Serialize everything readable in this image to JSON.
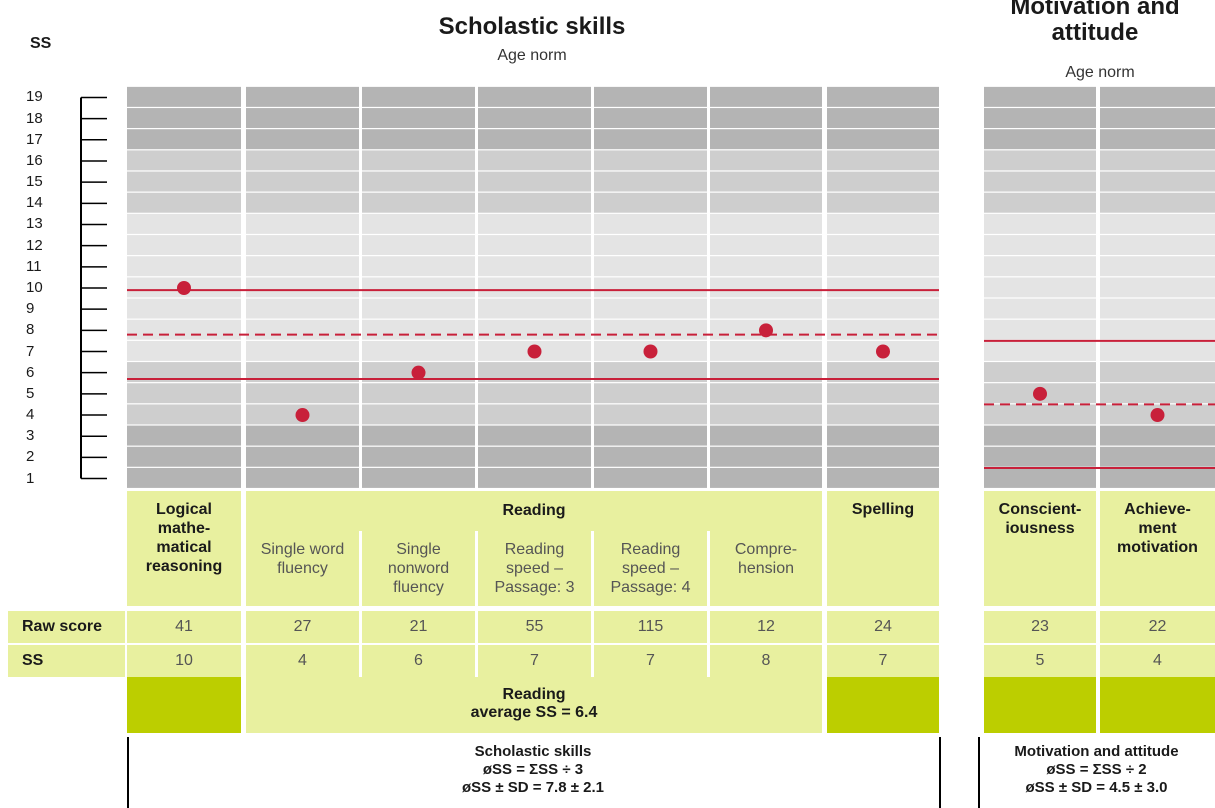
{
  "ss_axis_label": "SS",
  "titles": {
    "scholastic": "Scholastic skills",
    "scholastic_sub": "Age norm",
    "motivation": "Motivation and attitude",
    "motivation_sub": "Age norm"
  },
  "columns": [
    {
      "group": "scholastic",
      "header_bold": "Logical mathe-matical reasoning",
      "header_sub": "",
      "raw": "41",
      "ss": "10"
    },
    {
      "group": "reading",
      "header_bold": "",
      "header_sub": "Single word fluency",
      "raw": "27",
      "ss": "4"
    },
    {
      "group": "reading",
      "header_bold": "",
      "header_sub": "Single nonword fluency",
      "raw": "21",
      "ss": "6"
    },
    {
      "group": "reading",
      "header_bold": "",
      "header_sub": "Reading speed – Passage: 3",
      "raw": "55",
      "ss": "7"
    },
    {
      "group": "reading",
      "header_bold": "",
      "header_sub": "Reading speed – Passage: 4",
      "raw": "115",
      "ss": "7"
    },
    {
      "group": "reading",
      "header_bold": "",
      "header_sub": "Compre-hension",
      "raw": "12",
      "ss": "8"
    },
    {
      "group": "scholastic",
      "header_bold": "Spelling",
      "header_sub": "",
      "raw": "24",
      "ss": "7"
    },
    {
      "group": "motivation",
      "header_bold": "Conscient-iousness",
      "header_sub": "",
      "raw": "23",
      "ss": "5"
    },
    {
      "group": "motivation",
      "header_bold": "Achieve-ment motivation",
      "header_sub": "",
      "raw": "22",
      "ss": "4"
    }
  ],
  "reading_header": "Reading",
  "row_labels": {
    "raw": "Raw score",
    "ss": "SS"
  },
  "reading_average": {
    "line1": "Reading",
    "line2": "average SS = 6.4"
  },
  "footer": {
    "scholastic": [
      "Scholastic skills",
      "øSS = ΣSS ÷ 3",
      "øSS ± SD = 7.8 ± 2.1"
    ],
    "motivation": [
      "Motivation and attitude",
      "øSS = ΣSS ÷ 2",
      "øSS ± SD = 4.5 ± 3.0"
    ]
  },
  "chart_data": {
    "type": "scatter",
    "ylim": [
      1,
      19
    ],
    "y_ticks": [
      1,
      2,
      3,
      4,
      5,
      6,
      7,
      8,
      9,
      10,
      11,
      12,
      13,
      14,
      15,
      16,
      17,
      18,
      19
    ],
    "categories": [
      "Logical mathematical reasoning",
      "Single word fluency",
      "Single nonword fluency",
      "Reading speed – Passage: 3",
      "Reading speed – Passage: 4",
      "Comprehension",
      "Spelling",
      "Conscientiousness",
      "Achievement motivation"
    ],
    "values": [
      10,
      4,
      6,
      7,
      7,
      8,
      7,
      5,
      4
    ],
    "scholastic_mean": 7.8,
    "scholastic_sd": 2.1,
    "motivation_mean": 4.5,
    "motivation_sd": 3.0,
    "colors": {
      "point": "#c8203a",
      "line": "#c8203a",
      "dark_band": "#b4b4b4",
      "mid_band": "#cecece",
      "light_band": "#e4e4e4",
      "header_bg": "#e8f09f",
      "average_block": "#bcce00"
    }
  }
}
